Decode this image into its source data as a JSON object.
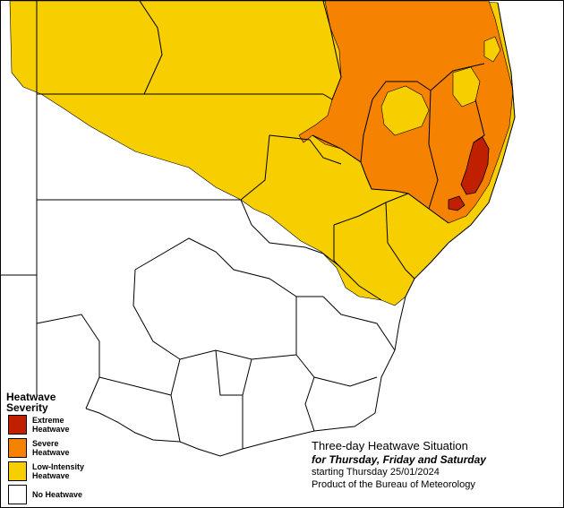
{
  "colors": {
    "extreme": "#c02000",
    "severe": "#f58200",
    "low_intensity": "#f7cf00",
    "none": "#ffffff",
    "boundary": "#000000"
  },
  "legend": {
    "title_line1": "Heatwave",
    "title_line2": "Severity",
    "items": [
      {
        "line1": "Extreme",
        "line2": "Heatwave",
        "color_key": "extreme"
      },
      {
        "line1": "Severe",
        "line2": "Heatwave",
        "color_key": "severe"
      },
      {
        "line1": "Low-Intensity",
        "line2": "Heatwave",
        "color_key": "low_intensity"
      },
      {
        "line1": "No Heatwave",
        "line2": "",
        "color_key": "none"
      }
    ]
  },
  "info": {
    "title": "Three-day Heatwave Situation",
    "days": "for Thursday, Friday and Saturday",
    "start": "starting Thursday 25/01/2024",
    "credit": "Product of the Bureau of Meteorology"
  }
}
